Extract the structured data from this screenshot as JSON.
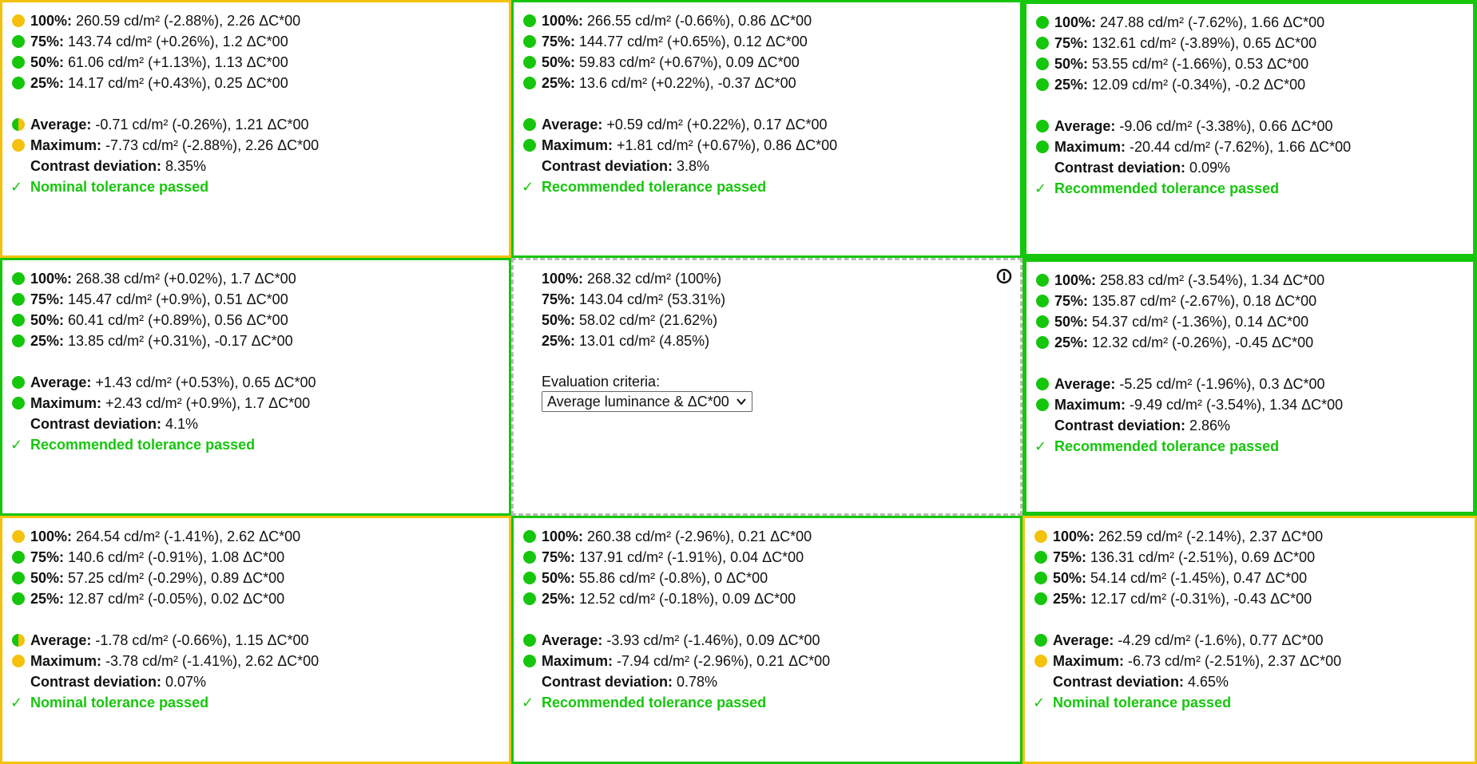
{
  "cells": [
    {
      "border": "border-yellow",
      "rows": [
        {
          "status": "yellow",
          "label": "100%:",
          "value": "260.59 cd/m² (-2.88%), 2.26 ΔC*00"
        },
        {
          "status": "green",
          "label": "75%:",
          "value": "143.74 cd/m² (+0.26%), 1.2 ΔC*00"
        },
        {
          "status": "green",
          "label": "50%:",
          "value": "61.06 cd/m² (+1.13%), 1.13 ΔC*00"
        },
        {
          "status": "green",
          "label": "25%:",
          "value": "14.17 cd/m² (+0.43%), 0.25 ΔC*00"
        }
      ],
      "average": {
        "status": "half",
        "label": "Average:",
        "value": "-0.71 cd/m² (-0.26%), 1.21 ΔC*00"
      },
      "maximum": {
        "status": "yellow",
        "label": "Maximum:",
        "value": "-7.73 cd/m² (-2.88%), 2.26 ΔC*00"
      },
      "contrast": {
        "label": "Contrast deviation:",
        "value": "8.35%"
      },
      "result": {
        "check": "✓",
        "text": "Nominal tolerance passed"
      }
    },
    {
      "border": "border-green",
      "rows": [
        {
          "status": "green",
          "label": "100%:",
          "value": "266.55 cd/m² (-0.66%), 0.86 ΔC*00"
        },
        {
          "status": "green",
          "label": "75%:",
          "value": "144.77 cd/m² (+0.65%), 0.12 ΔC*00"
        },
        {
          "status": "green",
          "label": "50%:",
          "value": "59.83 cd/m² (+0.67%), 0.09 ΔC*00"
        },
        {
          "status": "green",
          "label": "25%:",
          "value": "13.6 cd/m² (+0.22%), -0.37 ΔC*00"
        }
      ],
      "average": {
        "status": "green",
        "label": "Average:",
        "value": "+0.59 cd/m² (+0.22%), 0.17 ΔC*00"
      },
      "maximum": {
        "status": "green",
        "label": "Maximum:",
        "value": "+1.81 cd/m² (+0.67%), 0.86 ΔC*00"
      },
      "contrast": {
        "label": "Contrast deviation:",
        "value": "3.8%"
      },
      "result": {
        "check": "✓",
        "text": "Recommended tolerance passed"
      }
    },
    {
      "border": "border-green-thick",
      "rows": [
        {
          "status": "green",
          "label": "100%:",
          "value": "247.88 cd/m² (-7.62%), 1.66 ΔC*00"
        },
        {
          "status": "green",
          "label": "75%:",
          "value": "132.61 cd/m² (-3.89%), 0.65 ΔC*00"
        },
        {
          "status": "green",
          "label": "50%:",
          "value": "53.55 cd/m² (-1.66%), 0.53 ΔC*00"
        },
        {
          "status": "green",
          "label": "25%:",
          "value": "12.09 cd/m² (-0.34%), -0.2 ΔC*00"
        }
      ],
      "average": {
        "status": "green",
        "label": "Average:",
        "value": "-9.06 cd/m² (-3.38%), 0.66 ΔC*00"
      },
      "maximum": {
        "status": "green",
        "label": "Maximum:",
        "value": "-20.44 cd/m² (-7.62%), 1.66 ΔC*00"
      },
      "contrast": {
        "label": "Contrast deviation:",
        "value": "0.09%"
      },
      "result": {
        "check": "✓",
        "text": "Recommended tolerance passed"
      }
    },
    {
      "border": "border-green",
      "rows": [
        {
          "status": "green",
          "label": "100%:",
          "value": "268.38 cd/m² (+0.02%), 1.7 ΔC*00"
        },
        {
          "status": "green",
          "label": "75%:",
          "value": "145.47 cd/m² (+0.9%), 0.51 ΔC*00"
        },
        {
          "status": "green",
          "label": "50%:",
          "value": "60.41 cd/m² (+0.89%), 0.56 ΔC*00"
        },
        {
          "status": "green",
          "label": "25%:",
          "value": "13.85 cd/m² (+0.31%), -0.17 ΔC*00"
        }
      ],
      "average": {
        "status": "green",
        "label": "Average:",
        "value": "+1.43 cd/m² (+0.53%), 0.65 ΔC*00"
      },
      "maximum": {
        "status": "green",
        "label": "Maximum:",
        "value": "+2.43 cd/m² (+0.9%), 1.7 ΔC*00"
      },
      "contrast": {
        "label": "Contrast deviation:",
        "value": "4.1%"
      },
      "result": {
        "check": "✓",
        "text": "Recommended tolerance passed"
      }
    },
    {
      "reference": true,
      "rows": [
        {
          "label": "100%:",
          "value": "268.32 cd/m² (100%)"
        },
        {
          "label": "75%:",
          "value": "143.04 cd/m² (53.31%)"
        },
        {
          "label": "50%:",
          "value": "58.02 cd/m² (21.62%)"
        },
        {
          "label": "25%:",
          "value": "13.01 cd/m² (4.85%)"
        }
      ],
      "eval_label": "Evaluation criteria:",
      "eval_selected": "Average luminance & ΔC*00",
      "info_icon": "info-circle-icon"
    },
    {
      "border": "border-green-thick",
      "rows": [
        {
          "status": "green",
          "label": "100%:",
          "value": "258.83 cd/m² (-3.54%), 1.34 ΔC*00"
        },
        {
          "status": "green",
          "label": "75%:",
          "value": "135.87 cd/m² (-2.67%), 0.18 ΔC*00"
        },
        {
          "status": "green",
          "label": "50%:",
          "value": "54.37 cd/m² (-1.36%), 0.14 ΔC*00"
        },
        {
          "status": "green",
          "label": "25%:",
          "value": "12.32 cd/m² (-0.26%), -0.45 ΔC*00"
        }
      ],
      "average": {
        "status": "green",
        "label": "Average:",
        "value": "-5.25 cd/m² (-1.96%), 0.3 ΔC*00"
      },
      "maximum": {
        "status": "green",
        "label": "Maximum:",
        "value": "-9.49 cd/m² (-3.54%), 1.34 ΔC*00"
      },
      "contrast": {
        "label": "Contrast deviation:",
        "value": "2.86%"
      },
      "result": {
        "check": "✓",
        "text": "Recommended tolerance passed"
      }
    },
    {
      "border": "border-yellow",
      "rows": [
        {
          "status": "yellow",
          "label": "100%:",
          "value": "264.54 cd/m² (-1.41%), 2.62 ΔC*00"
        },
        {
          "status": "green",
          "label": "75%:",
          "value": "140.6 cd/m² (-0.91%), 1.08 ΔC*00"
        },
        {
          "status": "green",
          "label": "50%:",
          "value": "57.25 cd/m² (-0.29%), 0.89 ΔC*00"
        },
        {
          "status": "green",
          "label": "25%:",
          "value": "12.87 cd/m² (-0.05%), 0.02 ΔC*00"
        }
      ],
      "average": {
        "status": "half",
        "label": "Average:",
        "value": "-1.78 cd/m² (-0.66%), 1.15 ΔC*00"
      },
      "maximum": {
        "status": "yellow",
        "label": "Maximum:",
        "value": "-3.78 cd/m² (-1.41%), 2.62 ΔC*00"
      },
      "contrast": {
        "label": "Contrast deviation:",
        "value": "0.07%"
      },
      "result": {
        "check": "✓",
        "text": "Nominal tolerance passed"
      }
    },
    {
      "border": "border-green",
      "rows": [
        {
          "status": "green",
          "label": "100%:",
          "value": "260.38 cd/m² (-2.96%), 0.21 ΔC*00"
        },
        {
          "status": "green",
          "label": "75%:",
          "value": "137.91 cd/m² (-1.91%), 0.04 ΔC*00"
        },
        {
          "status": "green",
          "label": "50%:",
          "value": "55.86 cd/m² (-0.8%), 0 ΔC*00"
        },
        {
          "status": "green",
          "label": "25%:",
          "value": "12.52 cd/m² (-0.18%), 0.09 ΔC*00"
        }
      ],
      "average": {
        "status": "green",
        "label": "Average:",
        "value": "-3.93 cd/m² (-1.46%), 0.09 ΔC*00"
      },
      "maximum": {
        "status": "green",
        "label": "Maximum:",
        "value": "-7.94 cd/m² (-2.96%), 0.21 ΔC*00"
      },
      "contrast": {
        "label": "Contrast deviation:",
        "value": "0.78%"
      },
      "result": {
        "check": "✓",
        "text": "Recommended tolerance passed"
      }
    },
    {
      "border": "border-yellow",
      "rows": [
        {
          "status": "yellow",
          "label": "100%:",
          "value": "262.59 cd/m² (-2.14%), 2.37 ΔC*00"
        },
        {
          "status": "green",
          "label": "75%:",
          "value": "136.31 cd/m² (-2.51%), 0.69 ΔC*00"
        },
        {
          "status": "green",
          "label": "50%:",
          "value": "54.14 cd/m² (-1.45%), 0.47 ΔC*00"
        },
        {
          "status": "green",
          "label": "25%:",
          "value": "12.17 cd/m² (-0.31%), -0.43 ΔC*00"
        }
      ],
      "average": {
        "status": "green",
        "label": "Average:",
        "value": "-4.29 cd/m² (-1.6%), 0.77 ΔC*00"
      },
      "maximum": {
        "status": "yellow",
        "label": "Maximum:",
        "value": "-6.73 cd/m² (-2.51%), 2.37 ΔC*00"
      },
      "contrast": {
        "label": "Contrast deviation:",
        "value": "4.65%"
      },
      "result": {
        "check": "✓",
        "text": "Nominal tolerance passed"
      }
    }
  ],
  "colors": {
    "pass_green": "#16c60c",
    "warn_yellow": "#f4c20d",
    "reference_dashed": "#b8b8b8"
  }
}
